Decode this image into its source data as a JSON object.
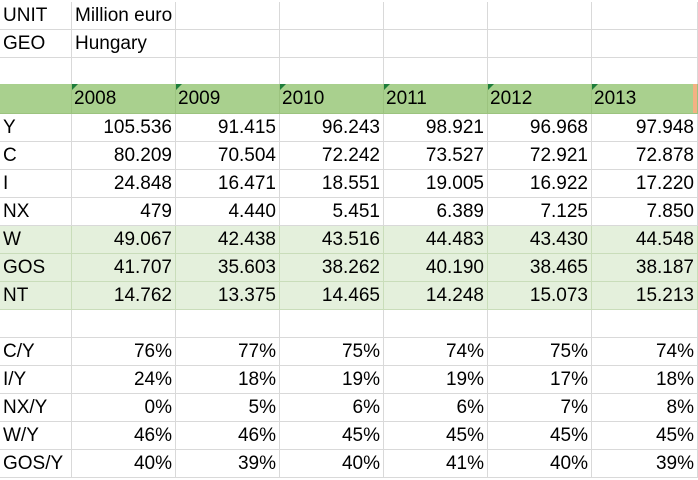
{
  "meta": {
    "unit_label": "UNIT",
    "unit_value": "Million euro",
    "geo_label": "GEO",
    "geo_value": "Hungary"
  },
  "years": [
    "2008",
    "2009",
    "2010",
    "2011",
    "2012",
    "2013"
  ],
  "rows_main": [
    {
      "label": "Y",
      "values": [
        "105.536",
        "91.415",
        "96.243",
        "98.921",
        "96.968",
        "97.948"
      ]
    },
    {
      "label": "C",
      "values": [
        "80.209",
        "70.504",
        "72.242",
        "73.527",
        "72.921",
        "72.878"
      ]
    },
    {
      "label": "I",
      "values": [
        "24.848",
        "16.471",
        "18.551",
        "19.005",
        "16.922",
        "17.220"
      ]
    },
    {
      "label": "NX",
      "values": [
        "479",
        "4.440",
        "5.451",
        "6.389",
        "7.125",
        "7.850"
      ]
    }
  ],
  "rows_income": [
    {
      "label": "W",
      "values": [
        "49.067",
        "42.438",
        "43.516",
        "44.483",
        "43.430",
        "44.548"
      ]
    },
    {
      "label": "GOS",
      "values": [
        "41.707",
        "35.603",
        "38.262",
        "40.190",
        "38.465",
        "38.187"
      ]
    },
    {
      "label": "NT",
      "values": [
        "14.762",
        "13.375",
        "14.465",
        "14.248",
        "15.073",
        "15.213"
      ]
    }
  ],
  "rows_ratio": [
    {
      "label": "C/Y",
      "values": [
        "76%",
        "77%",
        "75%",
        "74%",
        "75%",
        "74%"
      ]
    },
    {
      "label": "I/Y",
      "values": [
        "24%",
        "18%",
        "19%",
        "19%",
        "17%",
        "18%"
      ]
    },
    {
      "label": "NX/Y",
      "values": [
        "0%",
        "5%",
        "6%",
        "6%",
        "7%",
        "8%"
      ]
    },
    {
      "label": "W/Y",
      "values": [
        "46%",
        "46%",
        "45%",
        "45%",
        "45%",
        "45%"
      ]
    },
    {
      "label": "GOS/Y",
      "values": [
        "40%",
        "39%",
        "40%",
        "41%",
        "40%",
        "39%"
      ]
    }
  ],
  "colors": {
    "header_fill": "#a9d08e",
    "band_fill": "#e4f0dc",
    "indicator": "#1e7d3a",
    "edge": "#f4b183"
  }
}
